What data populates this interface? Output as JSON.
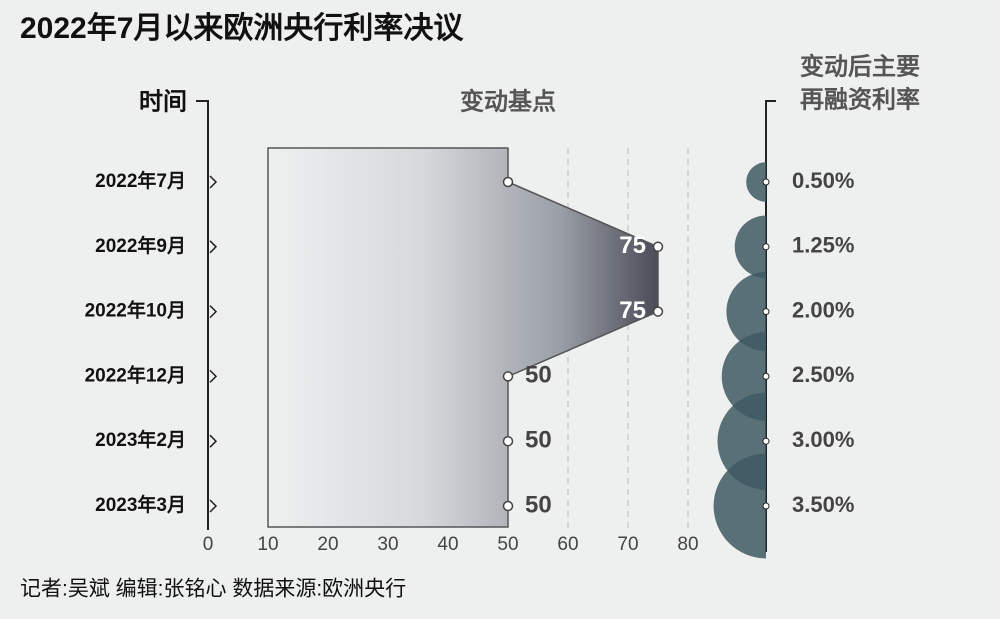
{
  "chart_data": {
    "type": "bar",
    "title": "2022年7月以来欧洲央行利率决议",
    "category_title": "时间",
    "value_title": "变动基点",
    "rate_title": [
      "变动后主要",
      "再融资利率"
    ],
    "categories": [
      "2022年7月",
      "2022年9月",
      "2022年10月",
      "2022年12月",
      "2023年2月",
      "2023年3月"
    ],
    "values": [
      50,
      75,
      75,
      50,
      50,
      50
    ],
    "value_labels": [
      null,
      "75",
      "75",
      "50",
      "50",
      "50"
    ],
    "rates": [
      0.5,
      1.25,
      2,
      2.5,
      3,
      3.5
    ],
    "rate_labels": [
      "0.50%",
      "1.25%",
      "2.00%",
      "2.50%",
      "3.00%",
      "3.50%"
    ],
    "rate_color": "#3e5961",
    "xlim": [
      0,
      80
    ],
    "xticks": [
      0,
      10,
      20,
      30,
      40,
      50,
      60,
      70,
      80
    ],
    "grid": true,
    "credits": "记者:吴斌  编辑:张铭心  数据来源:欧洲央行"
  }
}
